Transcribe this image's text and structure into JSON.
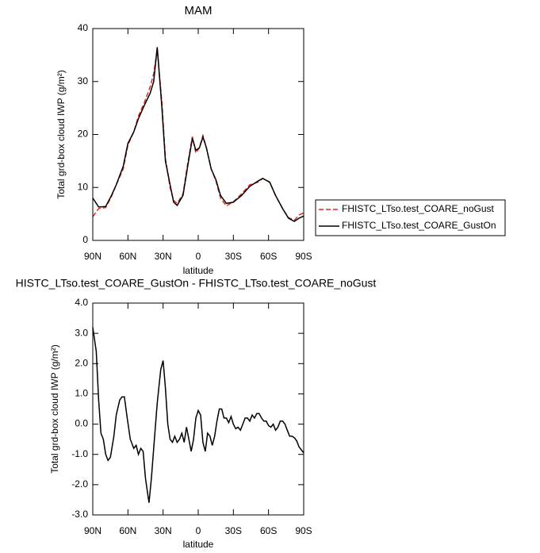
{
  "chart_data": [
    {
      "type": "line",
      "title": "MAM",
      "xlabel": "latitude",
      "ylabel": "Total grd-box cloud IWP (g/m²)",
      "x": [
        90,
        85,
        79,
        74,
        70,
        64,
        60,
        55,
        51,
        46,
        41,
        38,
        35,
        31,
        28,
        24,
        21,
        18,
        13,
        9,
        5,
        2,
        -1,
        -4,
        -7,
        -11,
        -15,
        -19,
        -24,
        -30,
        -37,
        -44,
        -51,
        -55,
        -61,
        -66,
        -72,
        -77,
        -82,
        -86,
        -90
      ],
      "series": [
        {
          "name": "FHISTC_LTso.test_COARE_noGust",
          "color": "#e8251f",
          "dash": true,
          "values": [
            4.5,
            6,
            6.2,
            8.3,
            10.5,
            13.5,
            18,
            20.5,
            23.5,
            26,
            29,
            31.5,
            36,
            26,
            15.5,
            10,
            7.5,
            7,
            8.8,
            14.5,
            19.6,
            16.5,
            17.5,
            19.8,
            17.5,
            13.5,
            11.3,
            8,
            6.5,
            7.3,
            8.8,
            10.5,
            11,
            11.7,
            11,
            8.5,
            6,
            4.3,
            3.8,
            4.8,
            5.2
          ]
        },
        {
          "name": "FHISTC_LTso.test_COARE_GustOn",
          "color": "#000000",
          "dash": false,
          "values": [
            8,
            6.3,
            6.4,
            8.5,
            10.5,
            14,
            18.3,
            20.5,
            23,
            25.5,
            27.8,
            30,
            36.5,
            25,
            15,
            10.5,
            7.2,
            6.6,
            8.5,
            14,
            19.3,
            17,
            17.5,
            19.5,
            17.5,
            13.5,
            11.5,
            8.5,
            7,
            7.2,
            8.5,
            10.2,
            11.2,
            11.7,
            11,
            8.5,
            6,
            4.2,
            3.6,
            4.2,
            4.6
          ]
        }
      ],
      "xlim": [
        90,
        -90
      ],
      "xticks": [
        {
          "value": 90,
          "label": "90N"
        },
        {
          "value": 60,
          "label": "60N"
        },
        {
          "value": 30,
          "label": "30N"
        },
        0,
        {
          "value": -30,
          "label": "30S"
        },
        {
          "value": -60,
          "label": "60S"
        },
        {
          "value": -90,
          "label": "90S"
        }
      ],
      "ylim": [
        0,
        40
      ],
      "yticks": [
        0,
        10,
        20,
        30,
        40
      ],
      "legend": "right"
    },
    {
      "type": "line",
      "title": "HISTC_LTso.test_COARE_GustOn - FHISTC_LTso.test_COARE_noGust",
      "xlabel": "latitude",
      "ylabel": "Total grd-box cloud IWP (g/m²)",
      "x": [
        90,
        87,
        85,
        83,
        81,
        79,
        77,
        75,
        72,
        70,
        67,
        65,
        63,
        61,
        58,
        55,
        53,
        51,
        49,
        47,
        45,
        42,
        40,
        37,
        35,
        32,
        30,
        28,
        26,
        24,
        22,
        20,
        18,
        16,
        14,
        12,
        10,
        8,
        6,
        4,
        2,
        0,
        -2,
        -4,
        -6,
        -8,
        -10,
        -12,
        -14,
        -16,
        -18,
        -20,
        -22,
        -24,
        -26,
        -28,
        -30,
        -32,
        -34,
        -36,
        -38,
        -40,
        -42,
        -44,
        -46,
        -48,
        -50,
        -52,
        -54,
        -56,
        -58,
        -60,
        -62,
        -64,
        -66,
        -68,
        -70,
        -72,
        -74,
        -76,
        -78,
        -80,
        -82,
        -84,
        -86,
        -88,
        -90
      ],
      "series": [
        {
          "color": "#000000",
          "dash": false,
          "values": [
            3.2,
            2.4,
            0.8,
            -0.3,
            -0.5,
            -1.0,
            -1.2,
            -1.1,
            -0.4,
            0.3,
            0.8,
            0.9,
            0.9,
            0.3,
            -0.5,
            -0.8,
            -0.7,
            -1.0,
            -0.8,
            -0.9,
            -1.8,
            -2.6,
            -1.8,
            -0.3,
            0.7,
            1.8,
            2.1,
            1.2,
            0.0,
            -0.5,
            -0.6,
            -0.4,
            -0.6,
            -0.5,
            -0.3,
            -0.6,
            -0.1,
            -0.5,
            -0.9,
            -0.5,
            0.2,
            0.45,
            0.3,
            -0.6,
            -0.9,
            -0.3,
            -0.4,
            -0.7,
            -0.4,
            0.1,
            0.5,
            0.5,
            0.2,
            0.2,
            0.05,
            0.25,
            0.0,
            -0.15,
            -0.1,
            -0.2,
            0.0,
            0.2,
            0.2,
            0.1,
            0.3,
            0.2,
            0.35,
            0.35,
            0.2,
            0.1,
            0.1,
            -0.05,
            -0.1,
            0.0,
            -0.2,
            -0.1,
            0.1,
            0.1,
            0.0,
            -0.2,
            -0.4,
            -0.4,
            -0.45,
            -0.55,
            -0.75,
            -0.85,
            -0.95
          ]
        }
      ],
      "xlim": [
        90,
        -90
      ],
      "xticks": [
        {
          "value": 90,
          "label": "90N"
        },
        {
          "value": 60,
          "label": "60N"
        },
        {
          "value": 30,
          "label": "30N"
        },
        0,
        {
          "value": -30,
          "label": "30S"
        },
        {
          "value": -60,
          "label": "60S"
        },
        {
          "value": -90,
          "label": "90S"
        }
      ],
      "ylim": [
        -3,
        4
      ],
      "yticks": [
        {
          "value": -3,
          "label": "-3.0"
        },
        {
          "value": -2,
          "label": "-2.0"
        },
        {
          "value": -1,
          "label": "-1.0"
        },
        {
          "value": 0,
          "label": "0.0"
        },
        {
          "value": 1,
          "label": "1.0"
        },
        {
          "value": 2,
          "label": "2.0"
        },
        {
          "value": 3,
          "label": "3.0"
        },
        {
          "value": 4,
          "label": "4.0"
        }
      ]
    }
  ]
}
